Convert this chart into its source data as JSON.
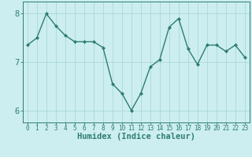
{
  "x": [
    0,
    1,
    2,
    3,
    4,
    5,
    6,
    7,
    8,
    9,
    10,
    11,
    12,
    13,
    14,
    15,
    16,
    17,
    18,
    19,
    20,
    21,
    22,
    23
  ],
  "y": [
    7.35,
    7.5,
    8.0,
    7.75,
    7.55,
    7.42,
    7.42,
    7.42,
    7.3,
    6.55,
    6.35,
    6.0,
    6.35,
    6.9,
    7.05,
    7.72,
    7.9,
    7.27,
    6.95,
    7.35,
    7.35,
    7.22,
    7.35,
    7.1
  ],
  "line_color": "#2e7d6e",
  "marker": "D",
  "marker_size": 2.0,
  "bg_color": "#cceef0",
  "grid_color": "#aad8da",
  "axis_color": "#2e7d6e",
  "xlabel": "Humidex (Indice chaleur)",
  "ylim": [
    5.75,
    8.25
  ],
  "yticks": [
    6,
    7,
    8
  ],
  "xticks": [
    0,
    1,
    2,
    3,
    4,
    5,
    6,
    7,
    8,
    9,
    10,
    11,
    12,
    13,
    14,
    15,
    16,
    17,
    18,
    19,
    20,
    21,
    22,
    23
  ],
  "font_color": "#2e7d6e",
  "tick_fontsize": 5.5,
  "ytick_fontsize": 7.5,
  "label_fontsize": 7.5,
  "linewidth": 1.0
}
